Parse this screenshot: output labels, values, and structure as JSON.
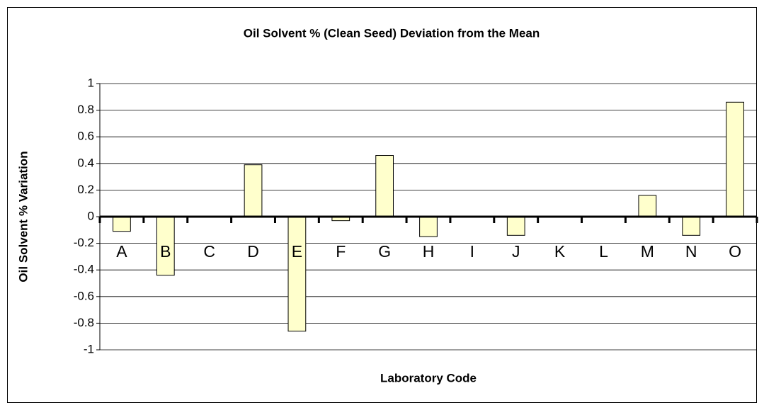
{
  "chart_data": {
    "type": "bar",
    "title": "Oil Solvent % (Clean Seed) Deviation from the Mean",
    "x_label": "Laboratory Code",
    "y_label": "Oil Solvent % Variation",
    "categories": [
      "A",
      "B",
      "C",
      "D",
      "E",
      "F",
      "G",
      "H",
      "I",
      "J",
      "K",
      "L",
      "M",
      "N",
      "O"
    ],
    "values": [
      -0.11,
      -0.44,
      null,
      0.39,
      -0.86,
      -0.03,
      0.46,
      -0.15,
      null,
      -0.14,
      null,
      null,
      0.16,
      -0.14,
      0.86
    ],
    "color": "#ffffcc",
    "ylim": [
      -1,
      1
    ],
    "yticks": [
      -1,
      -0.8,
      -0.6,
      -0.4,
      -0.2,
      0,
      0.2,
      0.4,
      0.6,
      0.8,
      1
    ],
    "grid": true
  }
}
